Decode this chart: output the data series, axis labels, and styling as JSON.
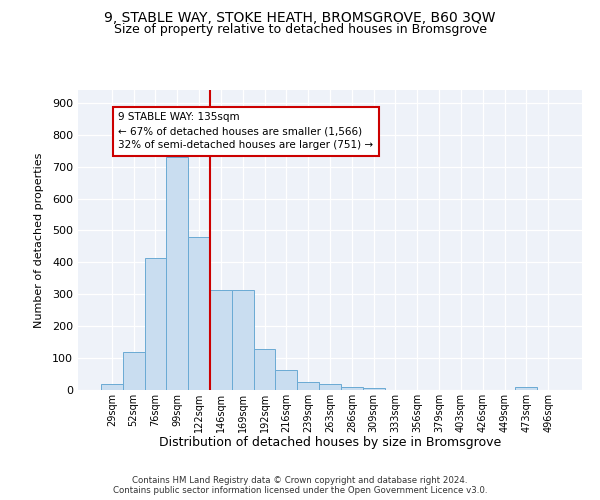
{
  "title1": "9, STABLE WAY, STOKE HEATH, BROMSGROVE, B60 3QW",
  "title2": "Size of property relative to detached houses in Bromsgrove",
  "xlabel": "Distribution of detached houses by size in Bromsgrove",
  "ylabel": "Number of detached properties",
  "categories": [
    "29sqm",
    "52sqm",
    "76sqm",
    "99sqm",
    "122sqm",
    "146sqm",
    "169sqm",
    "192sqm",
    "216sqm",
    "239sqm",
    "263sqm",
    "286sqm",
    "309sqm",
    "333sqm",
    "356sqm",
    "379sqm",
    "403sqm",
    "426sqm",
    "449sqm",
    "473sqm",
    "496sqm"
  ],
  "values": [
    20,
    120,
    415,
    730,
    480,
    313,
    313,
    130,
    62,
    25,
    20,
    10,
    5,
    0,
    0,
    0,
    0,
    0,
    0,
    8,
    0
  ],
  "bar_color": "#c9ddf0",
  "bar_edge_color": "#6aaad4",
  "vline_x": 4.5,
  "vline_color": "#cc0000",
  "annotation_text": "9 STABLE WAY: 135sqm\n← 67% of detached houses are smaller (1,566)\n32% of semi-detached houses are larger (751) →",
  "annotation_box_color": "white",
  "annotation_box_edge": "#cc0000",
  "ylim": [
    0,
    940
  ],
  "yticks": [
    0,
    100,
    200,
    300,
    400,
    500,
    600,
    700,
    800,
    900
  ],
  "footer": "Contains HM Land Registry data © Crown copyright and database right 2024.\nContains public sector information licensed under the Open Government Licence v3.0.",
  "bg_color": "#eef2f9",
  "grid_color": "#ffffff",
  "title1_fontsize": 10,
  "title2_fontsize": 9
}
